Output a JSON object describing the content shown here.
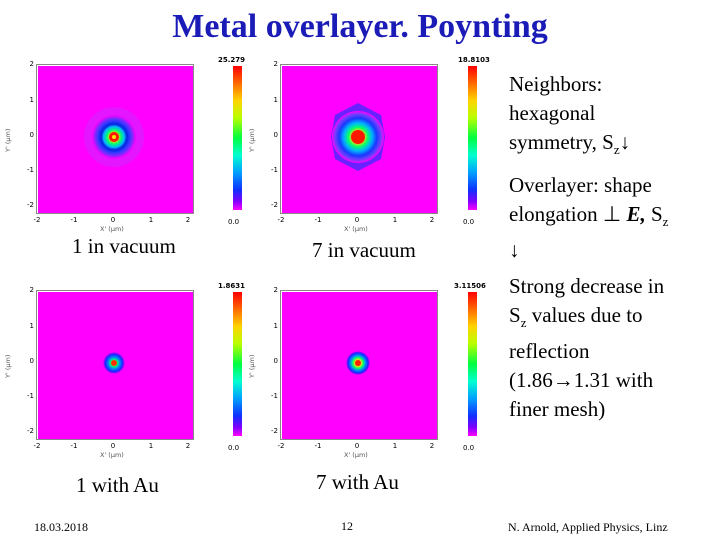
{
  "title": "Metal overlayer. Poynting",
  "axis": {
    "y_ticks": [
      "2",
      "1",
      "0",
      "-1",
      "-2"
    ],
    "x_ticks": [
      "-2",
      "-1",
      "0",
      "1",
      "2"
    ],
    "x_label": "X' (µm)",
    "y_label": "Y' (µm)"
  },
  "panels": [
    {
      "colorbar_max": "25.279",
      "colorbar_min": "0.0",
      "caption": "1 in vacuum"
    },
    {
      "colorbar_max": "18.8103",
      "colorbar_min": "0.0",
      "caption": "7 in vacuum"
    },
    {
      "colorbar_max": "1.8631",
      "colorbar_min": "0.0",
      "caption": "1 with Au"
    },
    {
      "colorbar_max": "3.11506",
      "colorbar_min": "0.0",
      "caption": "7 with Au"
    }
  ],
  "notes": {
    "neighbors": [
      "Neighbors:",
      "hexagonal",
      "symmetry, S",
      "z",
      "↓"
    ],
    "overlayer": [
      "Overlayer: shape",
      "elongation ",
      "⊥",
      " E,",
      " S",
      "z",
      "↓"
    ],
    "decrease": [
      "Strong decrease in",
      "S",
      "z",
      " values due to",
      "reflection",
      "(1.86",
      "→",
      "1.31 with",
      "finer mesh)"
    ]
  },
  "footer": {
    "date": "18.03.2018",
    "page": "12",
    "credit": "N. Arnold, Applied Physics, Linz"
  },
  "colors": {
    "title": "#1b1bb8",
    "plot_background": "#ff00ff"
  }
}
